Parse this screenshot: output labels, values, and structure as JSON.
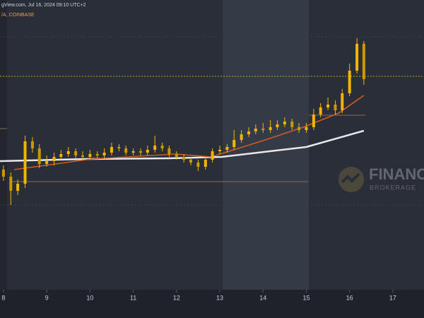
{
  "header": {
    "source": "gView.com, Jul 16, 2024 09:10 UTC+2",
    "symbol": "/A, COINBASE"
  },
  "watermark": {
    "title": "FINANC",
    "subtitle": "BROKERAGE"
  },
  "chart_data": {
    "type": "candlestick",
    "x": [
      8,
      8.17,
      8.33,
      8.5,
      8.67,
      8.83,
      9,
      9.17,
      9.33,
      9.5,
      9.67,
      9.83,
      10,
      10.17,
      10.33,
      10.5,
      10.67,
      10.83,
      11,
      11.17,
      11.33,
      11.5,
      11.67,
      11.83,
      12,
      12.17,
      12.33,
      12.5,
      12.67,
      12.83,
      13,
      13.17,
      13.33,
      13.5,
      13.67,
      13.83,
      14,
      14.17,
      14.33,
      14.5,
      14.67,
      14.83,
      15,
      15.17,
      15.33,
      15.5,
      15.67,
      15.83,
      16,
      16.17,
      16.33
    ],
    "open": [
      170,
      160,
      140,
      150,
      210,
      200,
      178,
      182,
      188,
      192,
      196,
      190,
      188,
      192,
      190,
      194,
      202,
      200,
      194,
      196,
      194,
      198,
      204,
      200,
      192,
      188,
      184,
      180,
      174,
      184,
      196,
      198,
      202,
      212,
      220,
      224,
      228,
      226,
      230,
      234,
      238,
      230,
      226,
      230,
      248,
      258,
      262,
      254,
      278,
      310,
      348
    ],
    "high": [
      176,
      166,
      156,
      218,
      216,
      206,
      190,
      194,
      198,
      202,
      200,
      196,
      198,
      196,
      200,
      208,
      206,
      204,
      200,
      200,
      204,
      218,
      208,
      204,
      196,
      192,
      188,
      184,
      188,
      200,
      204,
      206,
      226,
      226,
      230,
      234,
      236,
      240,
      240,
      244,
      242,
      236,
      236,
      256,
      264,
      272,
      268,
      284,
      320,
      356,
      352
    ],
    "low": [
      154,
      120,
      134,
      144,
      194,
      172,
      174,
      176,
      184,
      188,
      186,
      184,
      184,
      186,
      186,
      190,
      196,
      190,
      190,
      190,
      190,
      194,
      196,
      188,
      184,
      180,
      176,
      168,
      170,
      180,
      192,
      194,
      198,
      208,
      216,
      220,
      222,
      222,
      226,
      230,
      226,
      222,
      222,
      226,
      244,
      254,
      248,
      250,
      274,
      306,
      290
    ],
    "close": [
      160,
      140,
      150,
      210,
      200,
      178,
      182,
      188,
      192,
      196,
      190,
      188,
      192,
      190,
      194,
      202,
      200,
      194,
      196,
      194,
      198,
      204,
      200,
      192,
      188,
      184,
      180,
      174,
      184,
      196,
      198,
      202,
      212,
      220,
      224,
      228,
      226,
      230,
      234,
      238,
      230,
      226,
      230,
      248,
      258,
      262,
      254,
      278,
      310,
      348,
      298
    ],
    "color": "#f2b600",
    "lines": [
      {
        "color": "#e8e8e8",
        "x": [
          7.92,
          9.92,
          11.83,
          13.05,
          15.0,
          16.33
        ],
        "values": [
          182,
          185,
          186,
          188,
          202,
          225
        ]
      },
      {
        "color": "#d35a1f",
        "x": [
          8.25,
          10.04,
          11.98,
          12.8,
          13.95,
          14.93,
          15.75,
          16.33
        ],
        "values": [
          170,
          185,
          192,
          188,
          210,
          230,
          250,
          275
        ]
      }
    ],
    "levels": [
      {
        "value": 302,
        "x": [
          7.92,
          17.72
        ],
        "color": "#c9a227",
        "dash": true
      },
      {
        "value": 247,
        "x": [
          15.06,
          16.37
        ],
        "color": "#8a6a5a",
        "dash": false
      },
      {
        "value": 153,
        "x": [
          8.16,
          15.04
        ],
        "color": "#8a6a5a",
        "dash": false
      },
      {
        "value": 228,
        "x": [
          7.92,
          8.08
        ],
        "color": "#8a6a5a",
        "dash": false
      }
    ],
    "zone": [
      13.07,
      15.06
    ],
    "xlim": [
      7.92,
      17.72
    ],
    "xticks": [
      8,
      9,
      10,
      11,
      12,
      13,
      14,
      15,
      16,
      17
    ],
    "ylim": [
      0,
      410
    ]
  }
}
